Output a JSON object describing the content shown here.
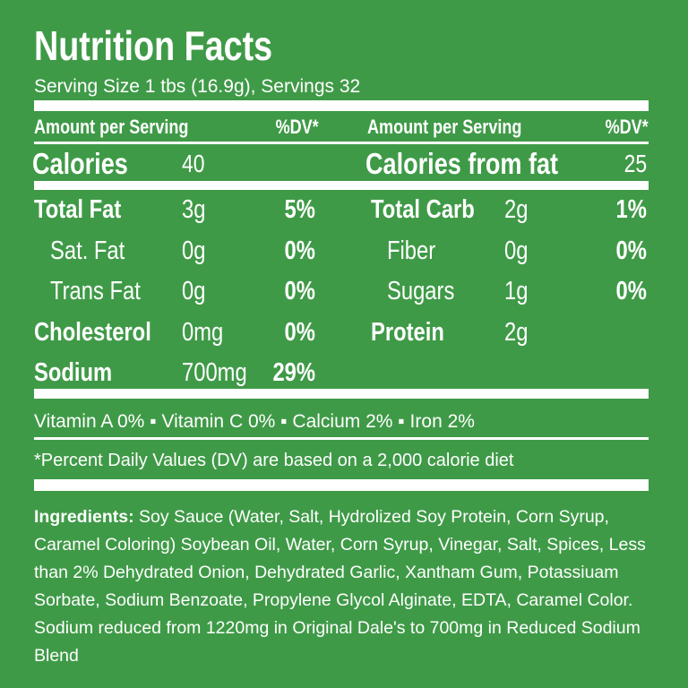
{
  "header": {
    "title": "Nutrition Facts",
    "serving": "Serving Size 1 tbs (16.9g), Servings 32"
  },
  "columns": [
    {
      "amount_header": "Amount per Serving",
      "dv_header": "%DV*"
    },
    {
      "amount_header": "Amount per Serving",
      "dv_header": "%DV*"
    }
  ],
  "calories": [
    {
      "label": "Calories",
      "value": "40"
    },
    {
      "label": "Calories from fat",
      "value": "25"
    }
  ],
  "left_nutrients": [
    {
      "name": "Total Fat",
      "amount": "3g",
      "dv": "5%",
      "sub": false
    },
    {
      "name": "Sat. Fat",
      "amount": "0g",
      "dv": "0%",
      "sub": true
    },
    {
      "name": "Trans Fat",
      "amount": "0g",
      "dv": "0%",
      "sub": true
    },
    {
      "name": "Cholesterol",
      "amount": "0mg",
      "dv": "0%",
      "sub": false
    },
    {
      "name": "Sodium",
      "amount": "700mg",
      "dv": "29%",
      "sub": false
    }
  ],
  "right_nutrients": [
    {
      "name": "Total Carb",
      "amount": "2g",
      "dv": "1%",
      "sub": false
    },
    {
      "name": "Fiber",
      "amount": "0g",
      "dv": "0%",
      "sub": true
    },
    {
      "name": "Sugars",
      "amount": "1g",
      "dv": "0%",
      "sub": true
    },
    {
      "name": "Protein",
      "amount": "2g",
      "sub": false
    }
  ],
  "vitamins": "Vitamin A 0% ▪ Vitamin C 0% ▪ Calcium  2% ▪ Iron 2%",
  "footnote": "*Percent Daily Values (DV) are based on a 2,000 calorie diet",
  "ingredients": {
    "label": "Ingredients:",
    "text": "Soy Sauce (Water, Salt, Hydrolized Soy Protein, Corn Syrup, Caramel Coloring) Soybean Oil, Water, Corn Syrup, Vinegar, Salt, Spices, Less than 2% Dehydrated Onion, Dehydrated Garlic, Xantham Gum, Potassiuam Sorbate, Sodium Benzoate, Propylene Glycol Alginate, EDTA, Caramel Color. Sodium reduced from 1220mg in Original Dale's to 700mg in Reduced Sodium Blend"
  }
}
